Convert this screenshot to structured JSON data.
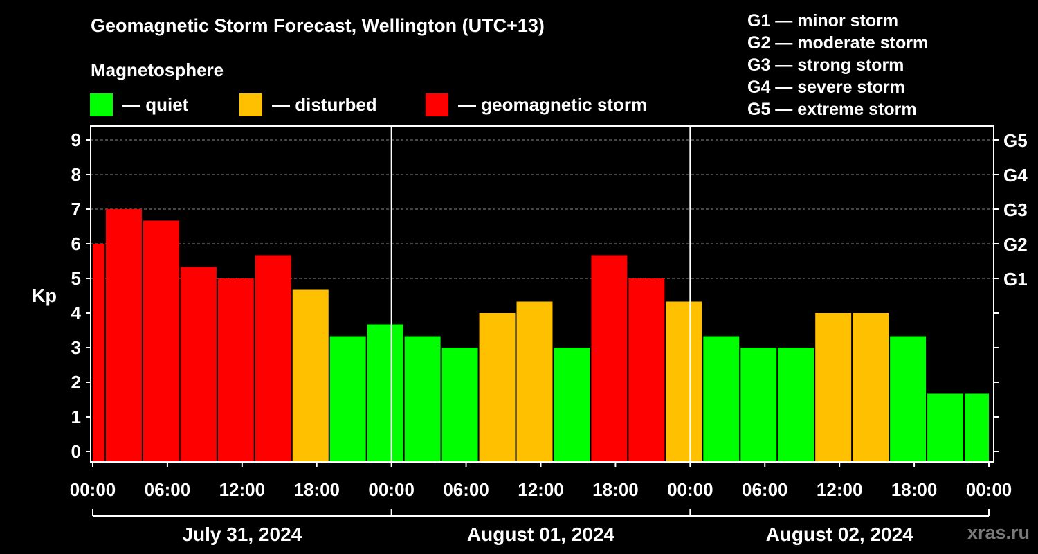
{
  "chart_data": {
    "type": "bar",
    "title": "Geomagnetic Storm Forecast, Wellington (UTC+13)",
    "subtitle": "Magnetosphere",
    "ylabel": "Kp",
    "ylim": [
      0,
      9
    ],
    "yticks": [
      "0",
      "1",
      "2",
      "3",
      "4",
      "5",
      "6",
      "7",
      "8",
      "9"
    ],
    "right_ticks": [
      {
        "value": 5,
        "label": "G1"
      },
      {
        "value": 6,
        "label": "G2"
      },
      {
        "value": 7,
        "label": "G3"
      },
      {
        "value": 8,
        "label": "G4"
      },
      {
        "value": 9,
        "label": "G5"
      }
    ],
    "xticks": [
      "00:00",
      "06:00",
      "12:00",
      "18:00",
      "00:00",
      "06:00",
      "12:00",
      "18:00",
      "00:00",
      "06:00",
      "12:00",
      "18:00",
      "00:00"
    ],
    "x_range_hours": [
      0,
      72
    ],
    "dates": [
      "July 31, 2024",
      "August 01, 2024",
      "August 02, 2024"
    ],
    "legend": [
      {
        "label": "— quiet",
        "color": "#00ff00"
      },
      {
        "label": "— disturbed",
        "color": "#ffc000"
      },
      {
        "label": "— geomagnetic storm",
        "color": "#ff0000"
      }
    ],
    "bars": [
      {
        "start": 0,
        "end": 1,
        "value": 6.0,
        "level": "storm"
      },
      {
        "start": 1,
        "end": 4,
        "value": 7.0,
        "level": "storm"
      },
      {
        "start": 4,
        "end": 7,
        "value": 6.67,
        "level": "storm"
      },
      {
        "start": 7,
        "end": 10,
        "value": 5.33,
        "level": "storm"
      },
      {
        "start": 10,
        "end": 13,
        "value": 5.0,
        "level": "storm"
      },
      {
        "start": 13,
        "end": 16,
        "value": 5.67,
        "level": "storm"
      },
      {
        "start": 16,
        "end": 19,
        "value": 4.67,
        "level": "disturbed"
      },
      {
        "start": 19,
        "end": 22,
        "value": 3.33,
        "level": "quiet"
      },
      {
        "start": 22,
        "end": 25,
        "value": 3.67,
        "level": "quiet"
      },
      {
        "start": 25,
        "end": 28,
        "value": 3.33,
        "level": "quiet"
      },
      {
        "start": 28,
        "end": 31,
        "value": 3.0,
        "level": "quiet"
      },
      {
        "start": 31,
        "end": 34,
        "value": 4.0,
        "level": "disturbed"
      },
      {
        "start": 34,
        "end": 37,
        "value": 4.33,
        "level": "disturbed"
      },
      {
        "start": 37,
        "end": 40,
        "value": 3.0,
        "level": "quiet"
      },
      {
        "start": 40,
        "end": 43,
        "value": 5.67,
        "level": "storm"
      },
      {
        "start": 43,
        "end": 46,
        "value": 5.0,
        "level": "storm"
      },
      {
        "start": 46,
        "end": 49,
        "value": 4.33,
        "level": "disturbed"
      },
      {
        "start": 49,
        "end": 52,
        "value": 3.33,
        "level": "quiet"
      },
      {
        "start": 52,
        "end": 55,
        "value": 3.0,
        "level": "quiet"
      },
      {
        "start": 55,
        "end": 58,
        "value": 3.0,
        "level": "quiet"
      },
      {
        "start": 58,
        "end": 61,
        "value": 4.0,
        "level": "disturbed"
      },
      {
        "start": 61,
        "end": 64,
        "value": 4.0,
        "level": "disturbed"
      },
      {
        "start": 64,
        "end": 67,
        "value": 3.33,
        "level": "quiet"
      },
      {
        "start": 67,
        "end": 70,
        "value": 1.67,
        "level": "quiet"
      },
      {
        "start": 70,
        "end": 72,
        "value": 1.67,
        "level": "quiet"
      }
    ]
  },
  "g_scale": [
    "G1 — minor storm",
    "G2 — moderate storm",
    "G3 — strong storm",
    "G4 — severe storm",
    "G5 — extreme storm"
  ],
  "colors": {
    "quiet": "#00ff00",
    "disturbed": "#ffc000",
    "storm": "#ff0000"
  },
  "watermark": "xras.ru"
}
